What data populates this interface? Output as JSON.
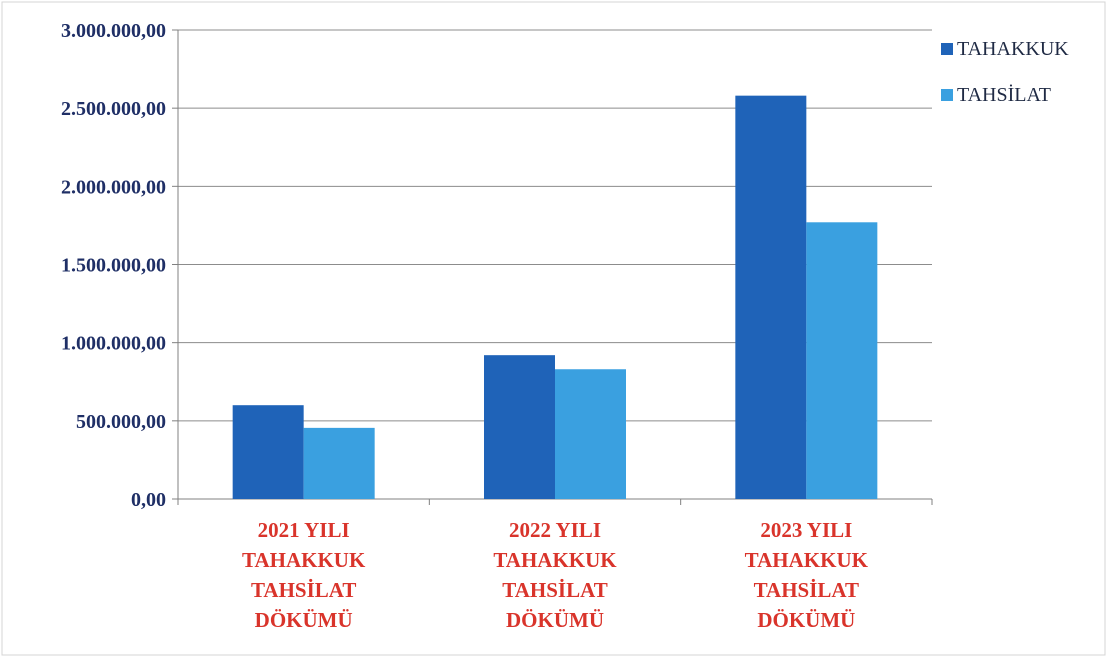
{
  "chart_data": {
    "type": "bar",
    "categories": [
      [
        "2021 YILI",
        "TAHAKKUK",
        "TAHSİLAT",
        "DÖKÜMÜ"
      ],
      [
        "2022 YILI",
        "TAHAKKUK",
        "TAHSİLAT",
        "DÖKÜMÜ"
      ],
      [
        "2023 YILI",
        "TAHAKKUK",
        "TAHSİLAT",
        "DÖKÜMÜ"
      ]
    ],
    "series": [
      {
        "name": "TAHAKKUK",
        "color": "#1f63b8",
        "values": [
          600000,
          920000,
          2580000
        ]
      },
      {
        "name": "TAHSİLAT",
        "color": "#3aa0e0",
        "values": [
          455000,
          830000,
          1770000
        ]
      }
    ],
    "yticks": [
      "0,00",
      "500.000,00",
      "1.000.000,00",
      "1.500.000,00",
      "2.000.000,00",
      "2.500.000,00",
      "3.000.000,00"
    ],
    "ylim": [
      0,
      3000000
    ],
    "grid": true,
    "legend_position": "top-right",
    "category_label_color": "#d9342b",
    "tick_label_color": "#1f2f66"
  }
}
